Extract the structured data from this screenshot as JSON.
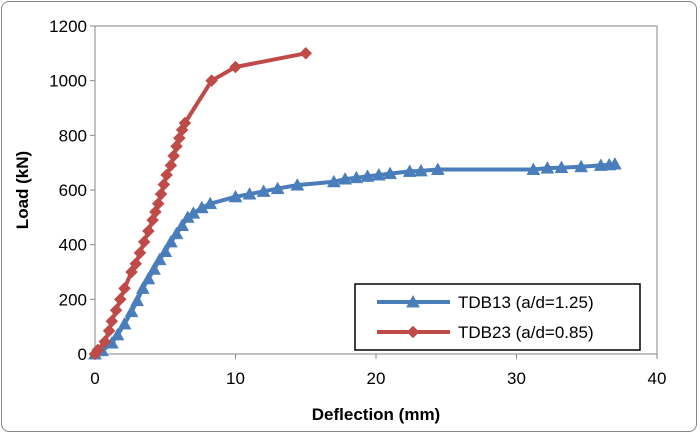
{
  "chart_data": {
    "type": "line",
    "title": "",
    "xlabel": "Deflection (mm)",
    "ylabel": "Load (kN)",
    "xlim": [
      0,
      40
    ],
    "ylim": [
      0,
      1200
    ],
    "x_ticks": [
      0,
      10,
      20,
      30,
      40
    ],
    "y_ticks": [
      0,
      200,
      400,
      600,
      800,
      1000,
      1200
    ],
    "grid": false,
    "legend_position": "bottom-right",
    "series": [
      {
        "name": "TDB13 (a/d=1.25)",
        "color": "#4a7ebb",
        "marker": "triangle",
        "points": [
          [
            0.0,
            0
          ],
          [
            0.5,
            12
          ],
          [
            1.2,
            40
          ],
          [
            1.6,
            70
          ],
          [
            2.1,
            110
          ],
          [
            2.6,
            155
          ],
          [
            3.0,
            195
          ],
          [
            3.4,
            240
          ],
          [
            3.8,
            275
          ],
          [
            4.2,
            310
          ],
          [
            4.6,
            345
          ],
          [
            5.0,
            375
          ],
          [
            5.4,
            410
          ],
          [
            5.8,
            440
          ],
          [
            6.2,
            470
          ],
          [
            6.6,
            500
          ],
          [
            7.0,
            515
          ],
          [
            7.6,
            535
          ],
          [
            8.2,
            550
          ],
          [
            10.0,
            575
          ],
          [
            11.0,
            585
          ],
          [
            12.0,
            595
          ],
          [
            13.0,
            605
          ],
          [
            14.4,
            618
          ],
          [
            17.0,
            630
          ],
          [
            17.8,
            640
          ],
          [
            18.6,
            645
          ],
          [
            19.4,
            650
          ],
          [
            20.2,
            655
          ],
          [
            21.0,
            660
          ],
          [
            22.4,
            668
          ],
          [
            23.2,
            670
          ],
          [
            24.4,
            675
          ],
          [
            31.2,
            675
          ],
          [
            32.2,
            680
          ],
          [
            33.2,
            682
          ],
          [
            34.6,
            685
          ],
          [
            36.0,
            690
          ],
          [
            36.6,
            692
          ],
          [
            37.0,
            695
          ]
        ]
      },
      {
        "name": "TDB23 (a/d=0.85)",
        "color": "#be4b48",
        "marker": "diamond",
        "points": [
          [
            0.0,
            0
          ],
          [
            0.2,
            15
          ],
          [
            0.7,
            45
          ],
          [
            1.0,
            85
          ],
          [
            1.2,
            120
          ],
          [
            1.5,
            160
          ],
          [
            1.8,
            200
          ],
          [
            2.1,
            240
          ],
          [
            2.6,
            300
          ],
          [
            2.9,
            330
          ],
          [
            3.2,
            370
          ],
          [
            3.5,
            410
          ],
          [
            3.8,
            450
          ],
          [
            4.1,
            490
          ],
          [
            4.3,
            520
          ],
          [
            4.5,
            550
          ],
          [
            4.7,
            585
          ],
          [
            4.9,
            620
          ],
          [
            5.1,
            655
          ],
          [
            5.4,
            690
          ],
          [
            5.6,
            725
          ],
          [
            5.8,
            760
          ],
          [
            6.0,
            790
          ],
          [
            6.2,
            820
          ],
          [
            6.4,
            845
          ],
          [
            8.3,
            1000
          ],
          [
            10.0,
            1050
          ],
          [
            15.0,
            1100
          ]
        ]
      }
    ]
  }
}
